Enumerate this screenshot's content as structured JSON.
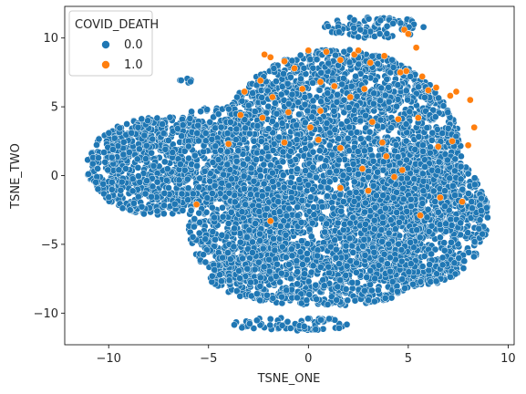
{
  "chart_data": {
    "type": "scatter",
    "title": "",
    "xlabel": "TSNE_ONE",
    "ylabel": "TSNE_TWO",
    "xlim": [
      -12.2,
      10.3
    ],
    "ylim": [
      -12.3,
      12.3
    ],
    "xticks": [
      -10,
      -5,
      0,
      5,
      10
    ],
    "xtick_labels": [
      "−10",
      "−5",
      "0",
      "5",
      "10"
    ],
    "yticks": [
      -10,
      -5,
      0,
      5,
      10
    ],
    "ytick_labels": [
      "−10",
      "−5",
      "0",
      "5",
      "10"
    ],
    "grid": false,
    "legend": {
      "title": "COVID_DEATH",
      "placement": "top-left",
      "entries": [
        {
          "label": "0.0",
          "color": "#1f77b4"
        },
        {
          "label": "1.0",
          "color": "#ff7f0e"
        }
      ]
    },
    "series": [
      {
        "name": "0.0",
        "color": "#1f77b4",
        "regions": [
          {
            "shape": "ellipse",
            "cx": -7.5,
            "cy": 0.7,
            "rx": 3.6,
            "ry": 3.6,
            "density": 1.0
          },
          {
            "shape": "ellipse",
            "cx": 1.5,
            "cy": 1.2,
            "rx": 6.2,
            "ry": 8.0,
            "density": 1.0
          },
          {
            "shape": "ellipse",
            "cx": -3.5,
            "cy": -3.5,
            "rx": 2.5,
            "ry": 4.5,
            "density": 1.0
          },
          {
            "shape": "ellipse",
            "cx": 0.5,
            "cy": -7.2,
            "rx": 5.5,
            "ry": 2.3,
            "density": 1.0
          },
          {
            "shape": "ellipse",
            "cx": 5.5,
            "cy": -3.0,
            "rx": 3.5,
            "ry": 5.0,
            "density": 1.0
          },
          {
            "shape": "ellipse",
            "cx": -4.5,
            "cy": 3.8,
            "rx": 2.0,
            "ry": 1.2,
            "density": 0.7
          },
          {
            "shape": "ellipse",
            "cx": 3.3,
            "cy": 10.8,
            "rx": 2.5,
            "ry": 0.8,
            "density": 0.8
          },
          {
            "shape": "ellipse",
            "cx": -0.8,
            "cy": -10.8,
            "rx": 3.0,
            "ry": 0.5,
            "density": 0.8
          },
          {
            "shape": "ellipse",
            "cx": -6.2,
            "cy": 6.9,
            "rx": 0.35,
            "ry": 0.2,
            "density": 1.0
          }
        ],
        "points_count": 6500
      },
      {
        "name": "1.0",
        "color": "#ff7f0e",
        "points": [
          [
            -2.2,
            8.8
          ],
          [
            -1.9,
            8.6
          ],
          [
            -1.2,
            8.3
          ],
          [
            -0.7,
            7.8
          ],
          [
            0.0,
            9.1
          ],
          [
            0.9,
            9.0
          ],
          [
            1.6,
            8.4
          ],
          [
            2.3,
            8.8
          ],
          [
            3.1,
            8.2
          ],
          [
            3.8,
            8.7
          ],
          [
            4.6,
            7.5
          ],
          [
            4.8,
            10.6
          ],
          [
            5.0,
            10.3
          ],
          [
            5.4,
            9.3
          ],
          [
            5.7,
            7.2
          ],
          [
            6.4,
            6.4
          ],
          [
            7.1,
            5.8
          ],
          [
            7.4,
            6.1
          ],
          [
            8.1,
            5.5
          ],
          [
            8.3,
            3.5
          ],
          [
            8.0,
            2.2
          ],
          [
            7.2,
            2.5
          ],
          [
            6.5,
            2.1
          ],
          [
            5.5,
            4.2
          ],
          [
            4.5,
            4.1
          ],
          [
            3.7,
            2.4
          ],
          [
            3.2,
            3.9
          ],
          [
            2.8,
            6.3
          ],
          [
            2.1,
            5.7
          ],
          [
            1.3,
            6.5
          ],
          [
            0.6,
            6.8
          ],
          [
            -0.3,
            6.3
          ],
          [
            -1.0,
            4.6
          ],
          [
            -1.8,
            5.7
          ],
          [
            -2.4,
            6.9
          ],
          [
            -3.2,
            6.1
          ],
          [
            -3.4,
            4.4
          ],
          [
            -2.3,
            4.2
          ],
          [
            -1.2,
            2.4
          ],
          [
            0.1,
            3.5
          ],
          [
            0.5,
            2.6
          ],
          [
            1.6,
            2.0
          ],
          [
            2.7,
            0.5
          ],
          [
            3.9,
            1.4
          ],
          [
            4.3,
            -0.1
          ],
          [
            4.7,
            0.4
          ],
          [
            6.6,
            -1.6
          ],
          [
            7.7,
            -1.9
          ],
          [
            5.6,
            -2.9
          ],
          [
            3.0,
            -1.1
          ],
          [
            1.6,
            -0.9
          ],
          [
            -1.9,
            -3.3
          ],
          [
            -5.6,
            -2.1
          ],
          [
            -4.0,
            2.3
          ],
          [
            0.6,
            4.7
          ],
          [
            2.5,
            9.1
          ],
          [
            6.0,
            6.2
          ],
          [
            4.9,
            7.6
          ]
        ]
      }
    ]
  }
}
